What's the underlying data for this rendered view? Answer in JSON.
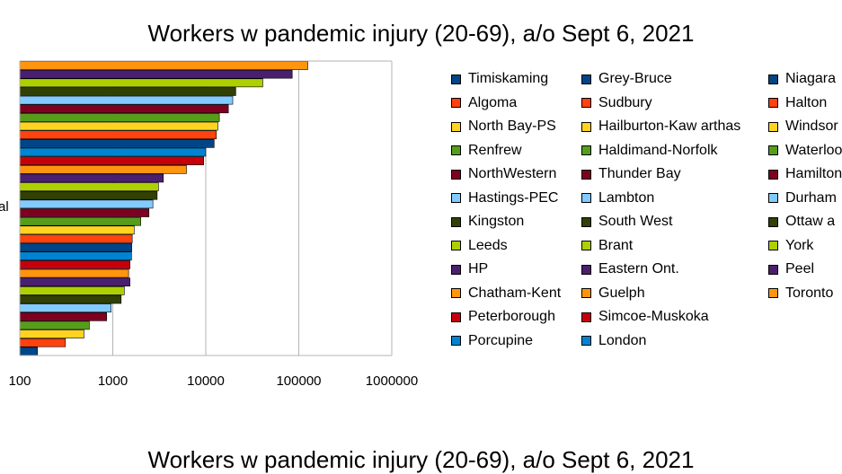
{
  "chart_data": {
    "type": "bar",
    "orientation": "horizontal",
    "title": "Workers w pandemic injury (20-69), a/o Sept 6, 2021",
    "ylabel_fragment": "al",
    "xscale": "log",
    "xlim": [
      100,
      1000000
    ],
    "xticks": [
      "100",
      "1000",
      "10000",
      "100000",
      "1000000"
    ],
    "grid": "vertical major lines",
    "legend_position": "right",
    "series": [
      {
        "name": "Timiskaming",
        "color": "#004586",
        "value": 155
      },
      {
        "name": "Algoma",
        "color": "#ff420e",
        "value": 310
      },
      {
        "name": "North Bay-PS",
        "color": "#ffd320",
        "value": 490
      },
      {
        "name": "Renfrew",
        "color": "#579d1c",
        "value": 560
      },
      {
        "name": "NorthWestern",
        "color": "#7e0021",
        "value": 860
      },
      {
        "name": "Hastings-PEC",
        "color": "#83caff",
        "value": 960
      },
      {
        "name": "Kingston",
        "color": "#314004",
        "value": 1230
      },
      {
        "name": "Leeds",
        "color": "#aecf00",
        "value": 1330
      },
      {
        "name": "HP",
        "color": "#4b1f6f",
        "value": 1530
      },
      {
        "name": "Chatham-Kent",
        "color": "#ff950e",
        "value": 1480
      },
      {
        "name": "Peterborough",
        "color": "#c5000b",
        "value": 1530
      },
      {
        "name": "Porcupine",
        "color": "#0084d1",
        "value": 1590
      },
      {
        "name": "Grey-Bruce",
        "color": "#004586",
        "value": 1600
      },
      {
        "name": "Sudbury",
        "color": "#ff420e",
        "value": 1620
      },
      {
        "name": "Hailburton-Kaw arthas",
        "color": "#ffd320",
        "value": 1700
      },
      {
        "name": "Haldimand-Norfolk",
        "color": "#579d1c",
        "value": 2000
      },
      {
        "name": "Thunder Bay",
        "color": "#7e0021",
        "value": 2450
      },
      {
        "name": "Lambton",
        "color": "#83caff",
        "value": 2700
      },
      {
        "name": "South West",
        "color": "#314004",
        "value": 3000
      },
      {
        "name": "Brant",
        "color": "#aecf00",
        "value": 3100
      },
      {
        "name": "Eastern Ont.",
        "color": "#4b1f6f",
        "value": 3500
      },
      {
        "name": "Guelph",
        "color": "#ff950e",
        "value": 6200
      },
      {
        "name": "Simcoe-Muskoka",
        "color": "#c5000b",
        "value": 9500
      },
      {
        "name": "London",
        "color": "#0084d1",
        "value": 10000
      },
      {
        "name": "Niagara",
        "color": "#004586",
        "value": 12300
      },
      {
        "name": "Halton",
        "color": "#ff420e",
        "value": 13000
      },
      {
        "name": "Windsor",
        "color": "#ffd320",
        "value": 13500
      },
      {
        "name": "Waterloo",
        "color": "#579d1c",
        "value": 14000
      },
      {
        "name": "Hamilton",
        "color": "#7e0021",
        "value": 17500
      },
      {
        "name": "Durham",
        "color": "#83caff",
        "value": 19500
      },
      {
        "name": "Ottawa",
        "color": "#314004",
        "value": 21000
      },
      {
        "name": "York",
        "color": "#aecf00",
        "value": 41000
      },
      {
        "name": "Peel",
        "color": "#4b1f6f",
        "value": 85000
      },
      {
        "name": "Toronto",
        "color": "#ff950e",
        "value": 125000
      }
    ],
    "legend_display": [
      "Timiskaming",
      "Algoma",
      "North Bay-PS",
      "Renfrew",
      "NorthWestern",
      "Hastings-PEC",
      "Kingston",
      "Leeds",
      "HP",
      "Chatham-Kent",
      "Peterborough",
      "Porcupine",
      "Grey-Bruce",
      "Sudbury",
      "Hailburton-Kaw arthas",
      "Haldimand-Norfolk",
      "Thunder Bay",
      "Lambton",
      "South West",
      "Brant",
      "Eastern Ont.",
      "Guelph",
      "Simcoe-Muskoka",
      "London",
      "Niagara",
      "Halton",
      "Windsor",
      "Waterloo",
      "Hamilton",
      "Durham",
      "Ottaw a",
      "York",
      "Peel",
      "Toronto"
    ]
  }
}
